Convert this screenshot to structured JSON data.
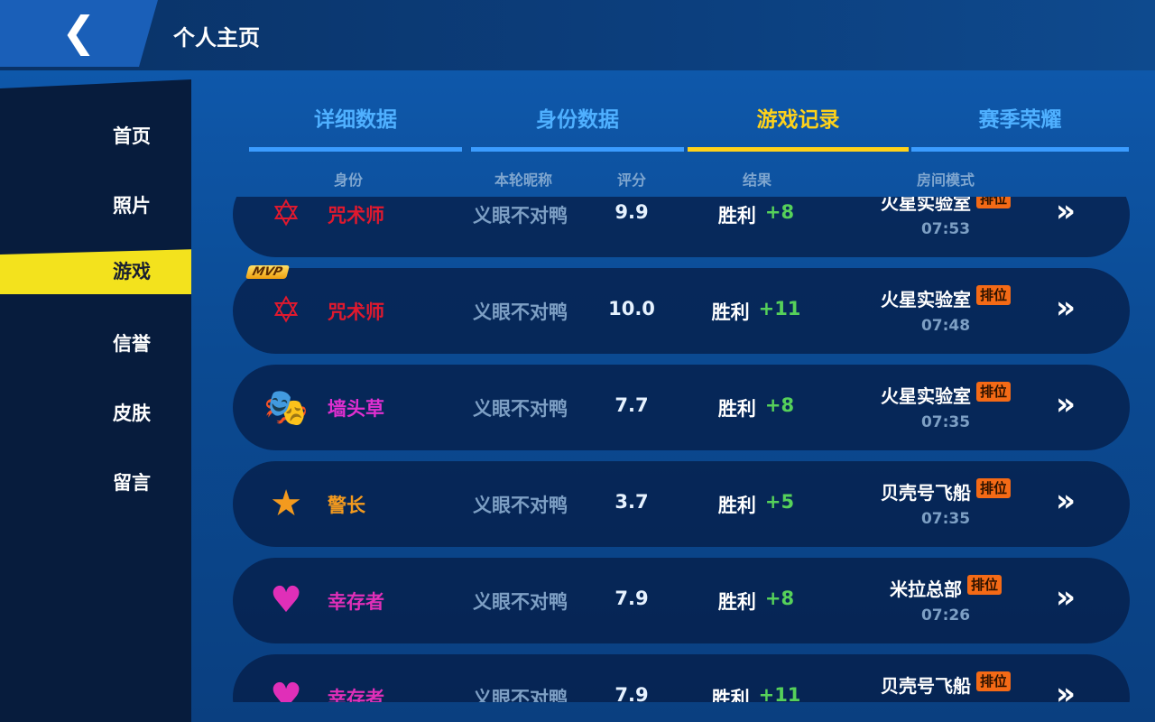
{
  "header": {
    "title": "个人主页",
    "back_icon": "chevron-left-icon"
  },
  "sidebar": {
    "items": [
      {
        "label": "首页"
      },
      {
        "label": "照片"
      },
      {
        "label": "游戏",
        "active": true
      },
      {
        "label": "信誉"
      },
      {
        "label": "皮肤"
      },
      {
        "label": "留言"
      }
    ]
  },
  "tabs": [
    {
      "label": "详细数据"
    },
    {
      "label": "身份数据"
    },
    {
      "label": "游戏记录",
      "active": true
    },
    {
      "label": "赛季荣耀"
    }
  ],
  "columns": {
    "role": "身份",
    "nick": "本轮昵称",
    "score": "评分",
    "result": "结果",
    "mode": "房间模式"
  },
  "colors": {
    "accent": "#ffd21a",
    "tab": "#3b9cff",
    "win_delta": "#56d15a",
    "badge": "#f46a16"
  },
  "records": [
    {
      "icon": "sorcerer-icon",
      "role": "咒术师",
      "role_color": "#e0192e",
      "nick": "义眼不对鸭",
      "score": "9.9",
      "result": "胜利",
      "delta": "+8",
      "map": "火星实验室",
      "badge": "排位",
      "time": "07:53"
    },
    {
      "icon": "sorcerer-icon",
      "mvp": "MVP",
      "role": "咒术师",
      "role_color": "#e0192e",
      "nick": "义眼不对鸭",
      "score": "10.0",
      "result": "胜利",
      "delta": "+11",
      "map": "火星实验室",
      "badge": "排位",
      "time": "07:48"
    },
    {
      "icon": "mask-icon",
      "role": "墙头草",
      "role_color": "#e02fd0",
      "nick": "义眼不对鸭",
      "score": "7.7",
      "result": "胜利",
      "delta": "+8",
      "map": "火星实验室",
      "badge": "排位",
      "time": "07:35"
    },
    {
      "icon": "sheriff-badge-icon",
      "role": "警长",
      "role_color": "#f39a1e",
      "nick": "义眼不对鸭",
      "score": "3.7",
      "result": "胜利",
      "delta": "+5",
      "map": "贝壳号飞船",
      "badge": "排位",
      "time": "07:35"
    },
    {
      "icon": "survivor-shield-icon",
      "role": "幸存者",
      "role_color": "#e02fb8",
      "nick": "义眼不对鸭",
      "score": "7.9",
      "result": "胜利",
      "delta": "+8",
      "map": "米拉总部",
      "badge": "排位",
      "time": "07:26"
    },
    {
      "icon": "survivor-shield-icon",
      "role": "幸存者",
      "role_color": "#e02fb8",
      "nick": "义眼不对鸭",
      "score": "7.9",
      "result": "胜利",
      "delta": "+11",
      "map": "贝壳号飞船",
      "badge": "排位",
      "time": ""
    }
  ]
}
